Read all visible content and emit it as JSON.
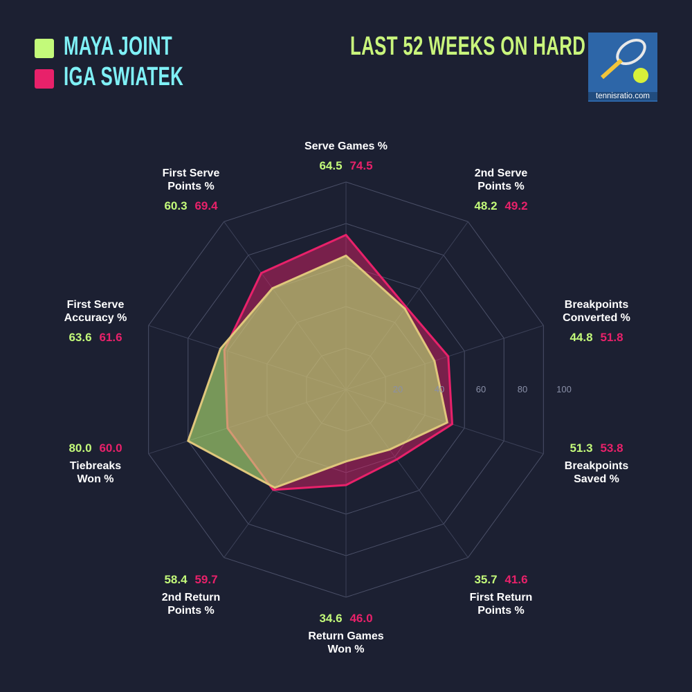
{
  "chart_data": {
    "type": "radar",
    "title": "LAST 52 WEEKS ON HARD",
    "logo_text": "tennisratio.com",
    "categories": [
      "Serve Games %",
      "2nd Serve\nPoints %",
      "Breakpoints\nConverted %",
      "Breakpoints\nSaved %",
      "First Return\nPoints %",
      "Return Games\nWon %",
      "2nd Return\nPoints %",
      "Tiebreaks\nWon %",
      "First Serve\nAccuracy %",
      "First Serve\nPoints %"
    ],
    "series": [
      {
        "name": "MAYA JOINT",
        "color": "#c3fa7a",
        "values": [
          64.5,
          48.2,
          44.8,
          51.3,
          35.7,
          34.6,
          58.4,
          80.0,
          63.6,
          60.3
        ],
        "value_labels": [
          "64.5",
          "48.2",
          "44.8",
          "51.3",
          "35.7",
          "34.6",
          "58.4",
          "80.0",
          "63.6",
          "60.3"
        ]
      },
      {
        "name": "IGA SWIATEK",
        "color": "#e8216a",
        "values": [
          74.5,
          49.2,
          51.8,
          53.8,
          41.6,
          46.0,
          59.7,
          60.0,
          61.6,
          69.4
        ],
        "value_labels": [
          "74.5",
          "49.2",
          "51.8",
          "53.8",
          "41.6",
          "46.0",
          "59.7",
          "60.0",
          "61.6",
          "69.4"
        ]
      }
    ],
    "rlim": [
      0,
      100
    ],
    "rticks": [
      20,
      40,
      60,
      80,
      100
    ],
    "grid": true
  }
}
